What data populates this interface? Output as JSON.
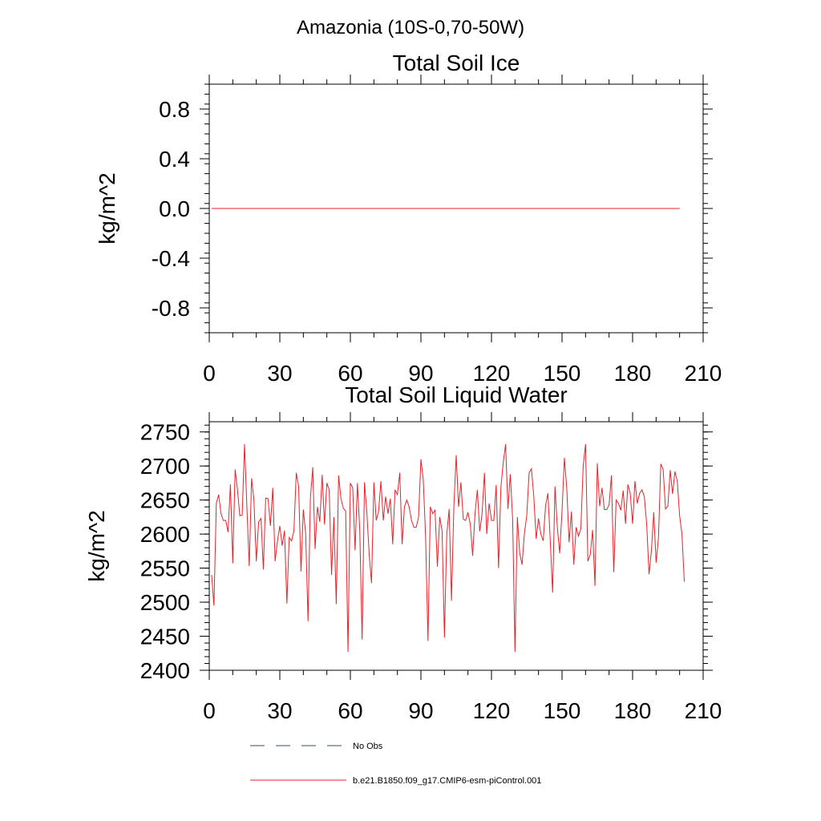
{
  "figure": {
    "suptitle": "Amazonia (10S-0,70-50W)",
    "colors": {
      "axes": "#000000",
      "model_line": "#e8222b",
      "obs_line": "#3a4a7a"
    }
  },
  "legend": {
    "entries": [
      {
        "label": "No Obs",
        "style": "dashed",
        "color": "#3a4a7a"
      },
      {
        "label": "b.e21.B1850.f09_g17.CMIP6-esm-piControl.001",
        "style": "solid",
        "color": "#e8222b"
      }
    ]
  },
  "chart_data": [
    {
      "type": "line",
      "title": "Total Soil Ice",
      "xlabel": "",
      "ylabel": "kg/m^2",
      "xlim": [
        0,
        210
      ],
      "ylim": [
        -1.0,
        1.0
      ],
      "x_ticks": [
        0,
        30,
        60,
        90,
        120,
        150,
        180,
        210
      ],
      "x_tick_labels": [
        "0",
        "30",
        "60",
        "90",
        "120",
        "150",
        "180",
        "210"
      ],
      "y_ticks": [
        -0.8,
        -0.4,
        0.0,
        0.4,
        0.8
      ],
      "y_tick_labels": [
        "-0.8",
        "-0.4",
        "0.0",
        "0.4",
        "0.8"
      ],
      "grid": false,
      "series": [
        {
          "name": "b.e21.B1850.f09_g17.CMIP6-esm-piControl.001",
          "x_start": 1,
          "x_step": 1,
          "values": [
            0,
            0
          ],
          "x": [
            1,
            200
          ]
        }
      ]
    },
    {
      "type": "line",
      "title": "Total Soil Liquid Water",
      "xlabel": "",
      "ylabel": "kg/m^2",
      "xlim": [
        0,
        210
      ],
      "ylim": [
        2400,
        2765
      ],
      "x_ticks": [
        0,
        30,
        60,
        90,
        120,
        150,
        180,
        210
      ],
      "x_tick_labels": [
        "0",
        "30",
        "60",
        "90",
        "120",
        "150",
        "180",
        "210"
      ],
      "y_ticks": [
        2400,
        2450,
        2500,
        2550,
        2600,
        2650,
        2700,
        2750
      ],
      "y_tick_labels": [
        "2400",
        "2450",
        "2500",
        "2550",
        "2600",
        "2650",
        "2700",
        "2750"
      ],
      "grid": false,
      "series": [
        {
          "name": "b.e21.B1850.f09_g17.CMIP6-esm-piControl.001",
          "x_start": 1,
          "x_step": 1,
          "values": [
            2540,
            2495,
            2645,
            2658,
            2630,
            2620,
            2620,
            2603,
            2673,
            2557,
            2695,
            2665,
            2627,
            2628,
            2732,
            2640,
            2553,
            2682,
            2650,
            2560,
            2618,
            2623,
            2548,
            2653,
            2652,
            2612,
            2668,
            2560,
            2590,
            2612,
            2583,
            2605,
            2498,
            2595,
            2590,
            2605,
            2690,
            2670,
            2545,
            2636,
            2600,
            2472,
            2652,
            2698,
            2578,
            2640,
            2618,
            2687,
            2614,
            2675,
            2665,
            2540,
            2625,
            2497,
            2686,
            2652,
            2638,
            2634,
            2427,
            2675,
            2668,
            2576,
            2675,
            2605,
            2445,
            2676,
            2633,
            2570,
            2528,
            2676,
            2620,
            2633,
            2678,
            2620,
            2655,
            2630,
            2652,
            2585,
            2665,
            2658,
            2690,
            2585,
            2640,
            2650,
            2640,
            2620,
            2610,
            2610,
            2625,
            2710,
            2680,
            2595,
            2443,
            2640,
            2630,
            2635,
            2552,
            2625,
            2605,
            2448,
            2600,
            2637,
            2502,
            2640,
            2716,
            2640,
            2676,
            2622,
            2620,
            2632,
            2614,
            2568,
            2630,
            2665,
            2604,
            2630,
            2690,
            2600,
            2645,
            2620,
            2620,
            2672,
            2550,
            2668,
            2705,
            2732,
            2637,
            2688,
            2622,
            2427,
            2625,
            2572,
            2555,
            2601,
            2627,
            2690,
            2696,
            2655,
            2593,
            2623,
            2600,
            2590,
            2642,
            2660,
            2590,
            2514,
            2670,
            2610,
            2572,
            2634,
            2712,
            2668,
            2588,
            2633,
            2555,
            2610,
            2597,
            2608,
            2700,
            2732,
            2560,
            2570,
            2606,
            2524,
            2704,
            2641,
            2668,
            2636,
            2636,
            2643,
            2686,
            2544,
            2650,
            2645,
            2635,
            2664,
            2615,
            2673,
            2660,
            2615,
            2678,
            2645,
            2660,
            2665,
            2655,
            2614,
            2541,
            2575,
            2632,
            2558,
            2594,
            2703,
            2695,
            2637,
            2641,
            2694,
            2659,
            2692,
            2678,
            2627,
            2600,
            2530
          ]
        }
      ]
    }
  ]
}
